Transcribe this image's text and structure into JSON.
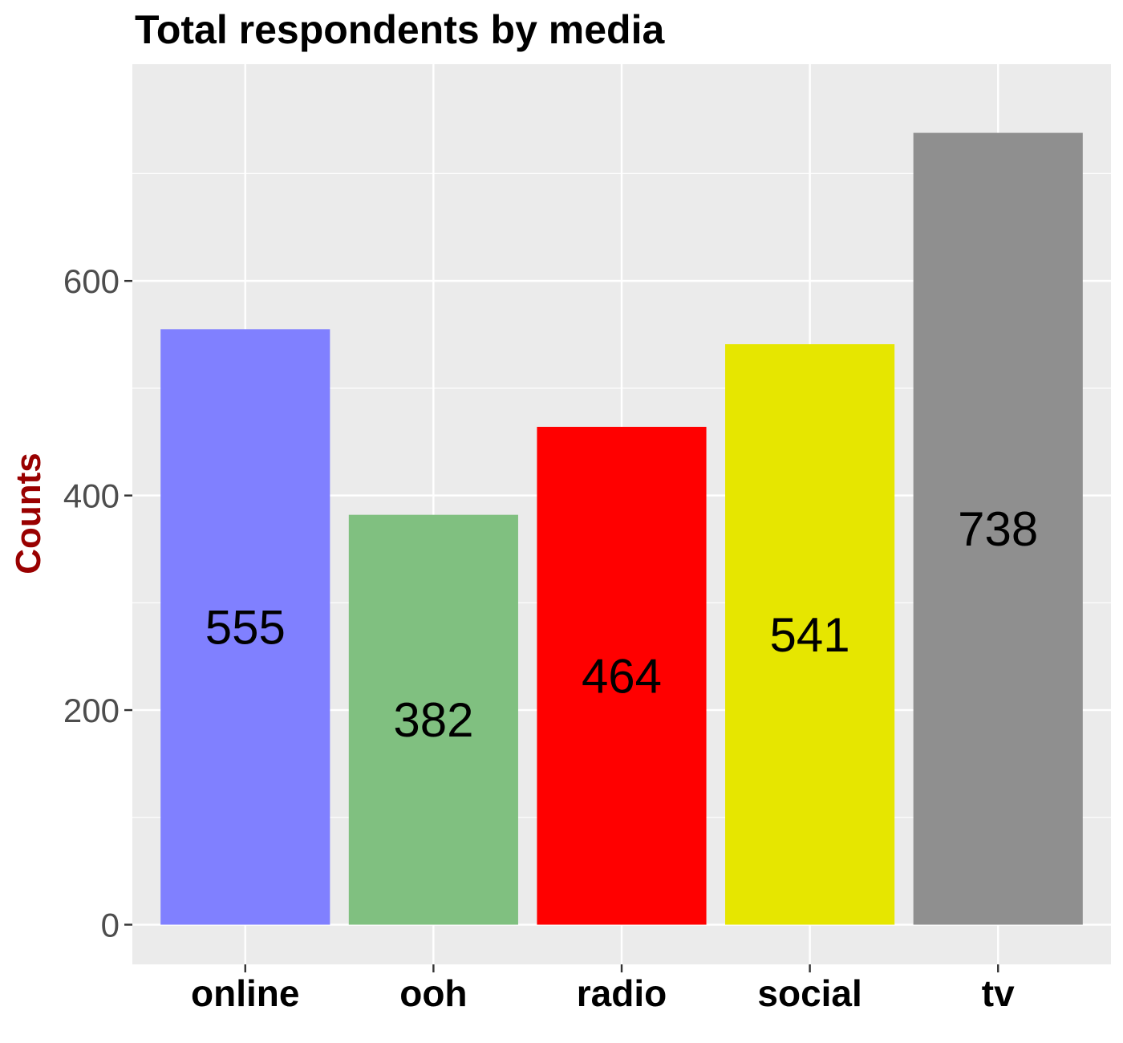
{
  "chart_data": {
    "type": "bar",
    "title": "Total respondents by media",
    "xlabel": "",
    "ylabel": "Counts",
    "categories": [
      "online",
      "ooh",
      "radio",
      "social",
      "tv"
    ],
    "values": [
      555,
      382,
      464,
      541,
      738
    ],
    "bar_colors": [
      "#8080ff",
      "#80c080",
      "#ff0000",
      "#e6e600",
      "#8f8f8f"
    ],
    "ylim": [
      -37,
      802
    ],
    "yticks": [
      0,
      200,
      400,
      600
    ],
    "grid": true,
    "legend": "none",
    "colors": {
      "panel_background": "#ebebeb",
      "grid": "#ffffff",
      "ylabel": "#990000"
    }
  }
}
